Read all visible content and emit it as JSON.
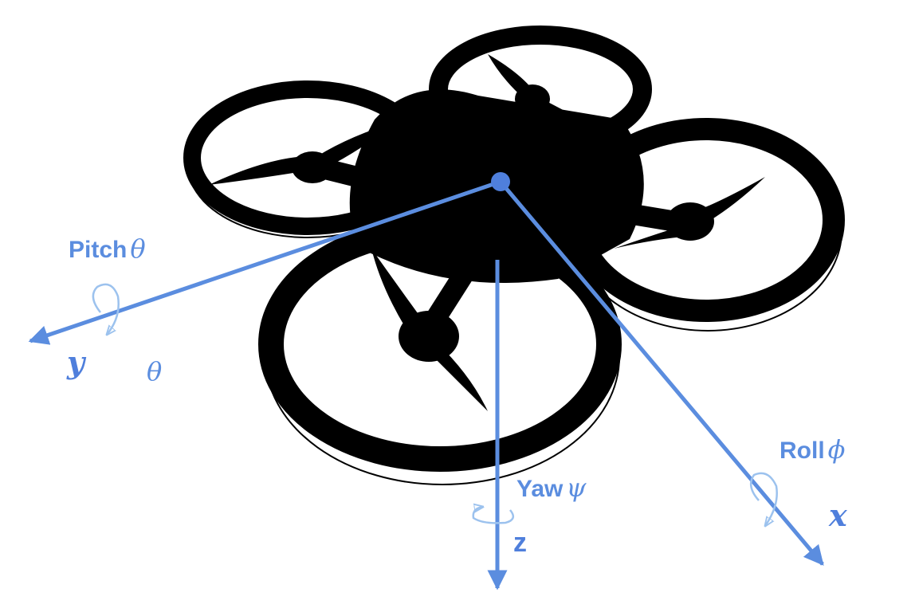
{
  "colors": {
    "axis": "#5b8ddf",
    "rotation": "#9cc2ee",
    "drone": "#000000",
    "background": "#ffffff"
  },
  "axes": {
    "x": {
      "name": "x",
      "rotation_label": "Roll",
      "rotation_symbol": "ϕ"
    },
    "y": {
      "name": "y",
      "rotation_label": "Pitch",
      "rotation_symbol": "θ"
    },
    "z": {
      "name": "z",
      "rotation_label": "Yaw",
      "rotation_symbol": "ψ"
    }
  },
  "extra_symbol": "θ"
}
